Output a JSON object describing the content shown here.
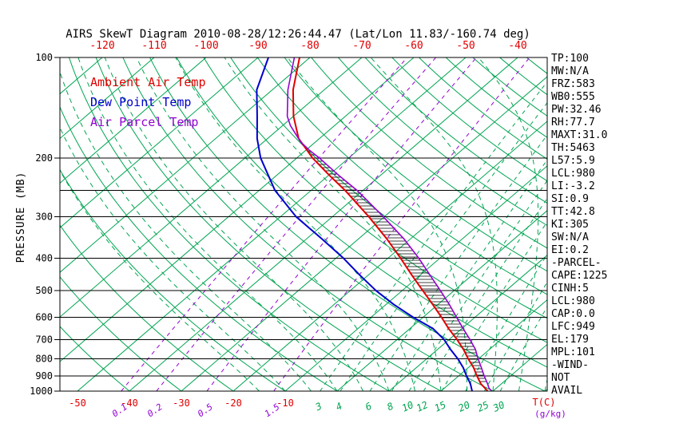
{
  "title": "AIRS SkewT Diagram 2010-08-28/12:26:44.47 (Lat/Lon 11.83/-160.74 deg)",
  "legend": {
    "items": [
      {
        "label": "Ambient Air Temp",
        "color": "#E00000"
      },
      {
        "label": "Dew Point Temp",
        "color": "#0000CD"
      },
      {
        "label": "Air Parcel Temp",
        "color": "#9400D3"
      }
    ]
  },
  "axes": {
    "pressure_axis_label": "PRESSURE (MB)",
    "pressure_ticks": [
      "100",
      "200",
      "300",
      "400",
      "500",
      "600",
      "700",
      "800",
      "900",
      "1000"
    ],
    "top_temp_ticks": [
      "-120",
      "-110",
      "-100",
      "-90",
      "-80",
      "-70",
      "-60",
      "-50",
      "-40"
    ],
    "bottom_temp_ticks": [
      "-50",
      "-40",
      "-30",
      "-20",
      "-10"
    ],
    "temp_unit_label": "T(C)",
    "mixing_unit_label": "(g/kg)"
  },
  "stats_panel": {
    "lines": [
      "TP:100",
      "MW:N/A",
      "FRZ:583",
      "WB0:555",
      "PW:32.46",
      "RH:77.7",
      "MAXT:31.0",
      "TH:5463",
      "L57:5.9",
      "LCL:980",
      "LI:-3.2",
      "SI:0.9",
      "TT:42.8",
      "KI:305",
      "SW:N/A",
      "EI:0.2",
      "-PARCEL-",
      "CAPE:1225",
      "CINH:5",
      "LCL:980",
      "CAP:0.0",
      "LFC:949",
      "EL:179",
      "MPL:101",
      "-WIND-",
      "NOT",
      "AVAIL"
    ]
  },
  "colors": {
    "line_green": "#00A551",
    "line_purple": "#9400D3",
    "isobar_black": "#000000",
    "ambient_red": "#E00000",
    "dewpoint_blue": "#0000CD",
    "parcel_purple": "#9400D3",
    "hatch_black": "#000000"
  },
  "chart_data": {
    "type": "skewt_log_p",
    "pressure_axis_mb": [
      100,
      1000
    ],
    "isobar_lines_mb": [
      100,
      200,
      250,
      300,
      400,
      500,
      600,
      700,
      800,
      900,
      1000
    ],
    "isotherms_c": {
      "start": -160,
      "end": 40,
      "step": 10
    },
    "dry_adiabats_theta_c": {
      "start": -40,
      "end": 200,
      "step": 10
    },
    "moist_adiabats_start_c": [
      -15,
      -10,
      -5,
      0,
      5,
      10,
      15,
      20,
      25,
      30,
      35,
      40
    ],
    "mixing_ratio_purple_gkg": [
      0.1,
      0.2,
      0.5,
      1.5
    ],
    "mixing_ratio_green_gkg": [
      3,
      4,
      6,
      8,
      10,
      12,
      15,
      20,
      25,
      30
    ],
    "cape_hatch_region": {
      "lfc_mb": 949,
      "el_mb": 179
    },
    "series": [
      {
        "name": "Ambient Air Temp",
        "color": "#E00000",
        "points_p_t": [
          [
            1000,
            29
          ],
          [
            950,
            26
          ],
          [
            900,
            23.5
          ],
          [
            850,
            21
          ],
          [
            800,
            18
          ],
          [
            750,
            15
          ],
          [
            700,
            11.5
          ],
          [
            650,
            7.5
          ],
          [
            600,
            3.5
          ],
          [
            550,
            -1
          ],
          [
            500,
            -6
          ],
          [
            450,
            -11.5
          ],
          [
            400,
            -17.5
          ],
          [
            350,
            -24.5
          ],
          [
            300,
            -33
          ],
          [
            250,
            -43.5
          ],
          [
            225,
            -50
          ],
          [
            200,
            -57
          ],
          [
            175,
            -64
          ],
          [
            150,
            -70
          ],
          [
            125,
            -76
          ],
          [
            100,
            -82
          ]
        ]
      },
      {
        "name": "Dew Point Temp",
        "color": "#0000CD",
        "points_p_t": [
          [
            1000,
            26
          ],
          [
            950,
            24
          ],
          [
            900,
            21.5
          ],
          [
            850,
            19
          ],
          [
            800,
            16
          ],
          [
            750,
            12.5
          ],
          [
            700,
            9
          ],
          [
            650,
            4.5
          ],
          [
            600,
            -2
          ],
          [
            550,
            -8.5
          ],
          [
            500,
            -15
          ],
          [
            450,
            -21.5
          ],
          [
            400,
            -28.5
          ],
          [
            350,
            -37
          ],
          [
            300,
            -47
          ],
          [
            250,
            -57
          ],
          [
            200,
            -67
          ],
          [
            175,
            -72
          ],
          [
            150,
            -77
          ],
          [
            125,
            -83
          ],
          [
            100,
            -88
          ]
        ]
      },
      {
        "name": "Air Parcel Temp",
        "color": "#9400D3",
        "points_p_t": [
          [
            1000,
            29.8
          ],
          [
            980,
            28.6
          ],
          [
            950,
            27.3
          ],
          [
            900,
            24.9
          ],
          [
            850,
            22.5
          ],
          [
            800,
            19.9
          ],
          [
            750,
            17.3
          ],
          [
            700,
            14
          ],
          [
            650,
            10.3
          ],
          [
            600,
            6.4
          ],
          [
            550,
            2.2
          ],
          [
            500,
            -2.6
          ],
          [
            450,
            -8
          ],
          [
            400,
            -14
          ],
          [
            350,
            -21.2
          ],
          [
            300,
            -30.2
          ],
          [
            250,
            -41.2
          ],
          [
            225,
            -48.2
          ],
          [
            200,
            -55.7
          ],
          [
            190,
            -59.2
          ],
          [
            179,
            -62.9
          ],
          [
            160,
            -68.5
          ],
          [
            150,
            -71.2
          ],
          [
            125,
            -77
          ],
          [
            100,
            -83
          ]
        ]
      }
    ]
  }
}
